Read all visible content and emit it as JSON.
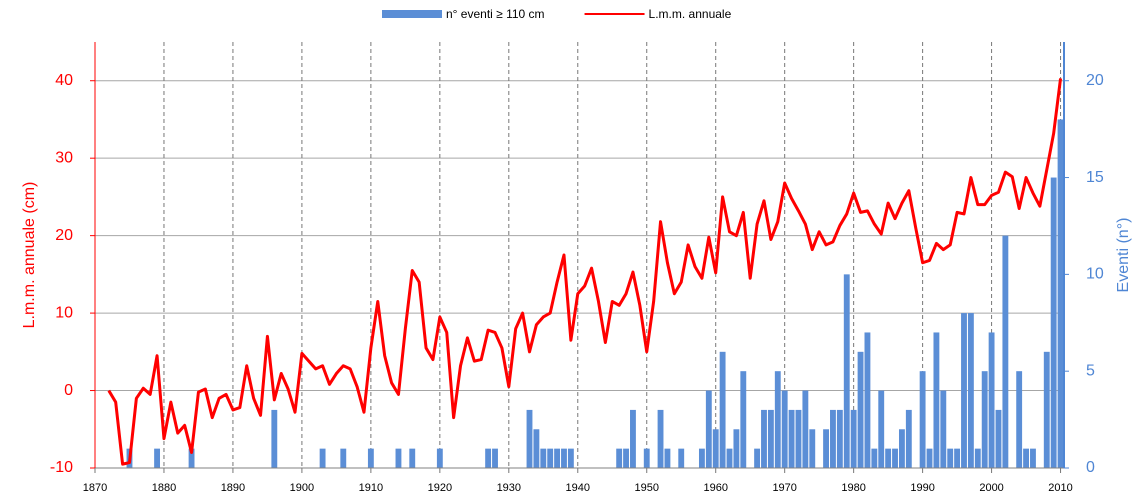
{
  "chart_data": {
    "type": "bar-line",
    "ylabel": "L.m.m. annuale (cm)",
    "y2label": "Eventi (n°)",
    "xlim": [
      1870,
      2010.5
    ],
    "xticks": [
      1870,
      1880,
      1890,
      1900,
      1910,
      1920,
      1930,
      1940,
      1950,
      1960,
      1970,
      1980,
      1990,
      2000,
      2010
    ],
    "ylim": [
      -10,
      45
    ],
    "yticks": [
      -10,
      0,
      10,
      20,
      30,
      40
    ],
    "y2lim": [
      0,
      22
    ],
    "y2ticks": [
      0,
      5,
      10,
      15,
      20
    ],
    "grid": true,
    "x": [
      1872,
      1873,
      1874,
      1875,
      1876,
      1877,
      1878,
      1879,
      1880,
      1881,
      1882,
      1883,
      1884,
      1885,
      1886,
      1887,
      1888,
      1889,
      1890,
      1891,
      1892,
      1893,
      1894,
      1895,
      1896,
      1897,
      1898,
      1899,
      1900,
      1901,
      1902,
      1903,
      1904,
      1905,
      1906,
      1907,
      1908,
      1909,
      1910,
      1911,
      1912,
      1913,
      1914,
      1915,
      1916,
      1917,
      1918,
      1919,
      1920,
      1921,
      1922,
      1923,
      1924,
      1925,
      1926,
      1927,
      1928,
      1929,
      1930,
      1931,
      1932,
      1933,
      1934,
      1935,
      1936,
      1937,
      1938,
      1939,
      1940,
      1941,
      1942,
      1943,
      1944,
      1945,
      1946,
      1947,
      1948,
      1949,
      1950,
      1951,
      1952,
      1953,
      1954,
      1955,
      1956,
      1957,
      1958,
      1959,
      1960,
      1961,
      1962,
      1963,
      1964,
      1965,
      1966,
      1967,
      1968,
      1969,
      1970,
      1971,
      1972,
      1973,
      1974,
      1975,
      1976,
      1977,
      1978,
      1979,
      1980,
      1981,
      1982,
      1983,
      1984,
      1985,
      1986,
      1987,
      1988,
      1989,
      1990,
      1991,
      1992,
      1993,
      1994,
      1995,
      1996,
      1997,
      1998,
      1999,
      2000,
      2001,
      2002,
      2003,
      2004,
      2005,
      2006,
      2007,
      2008,
      2009,
      2010
    ],
    "series": [
      {
        "name": "n° eventi ≥ 110 cm",
        "type": "bar",
        "axis": "y2",
        "color": "#5b8ed6",
        "values": [
          0,
          0,
          0,
          1,
          0,
          0,
          0,
          1,
          0,
          0,
          0,
          0,
          1,
          0,
          0,
          0,
          0,
          0,
          0,
          0,
          0,
          0,
          0,
          0,
          3,
          0,
          0,
          0,
          0,
          0,
          0,
          1,
          0,
          0,
          1,
          0,
          0,
          0,
          1,
          0,
          0,
          0,
          1,
          0,
          1,
          0,
          0,
          0,
          1,
          0,
          0,
          0,
          0,
          0,
          0,
          1,
          1,
          0,
          0,
          0,
          0,
          3,
          2,
          1,
          1,
          1,
          1,
          1,
          0,
          0,
          0,
          0,
          0,
          0,
          1,
          1,
          3,
          0,
          1,
          0,
          3,
          1,
          0,
          1,
          0,
          0,
          1,
          4,
          2,
          6,
          1,
          2,
          5,
          0,
          1,
          3,
          3,
          5,
          4,
          3,
          3,
          4,
          2,
          0,
          2,
          3,
          3,
          10,
          3,
          6,
          7,
          1,
          4,
          1,
          1,
          2,
          3,
          0,
          5,
          1,
          7,
          4,
          1,
          1,
          8,
          8,
          1,
          5,
          7,
          3,
          12,
          0,
          5,
          1,
          1,
          0,
          6,
          15,
          18
        ]
      },
      {
        "name": "L.m.m. annuale",
        "type": "line",
        "color": "#ff0000",
        "values": [
          0,
          -1.5,
          -9.5,
          -9.3,
          -1,
          0.3,
          -0.5,
          4.5,
          -6.2,
          -1.5,
          -5.5,
          -4.5,
          -8,
          -0.2,
          0.2,
          -3.5,
          -1,
          -0.5,
          -2.5,
          -2.2,
          3.2,
          -1,
          -3.2,
          7,
          -1.2,
          2.2,
          0.2,
          -2.8,
          4.8,
          3.8,
          2.8,
          3.2,
          0.8,
          2.2,
          3.2,
          2.8,
          0.5,
          -2.8,
          5.5,
          11.5,
          4.5,
          1,
          -0.5,
          8,
          15.5,
          14,
          5.5,
          4,
          9.5,
          7.5,
          -3.5,
          3.2,
          6.8,
          3.8,
          4,
          7.8,
          7.5,
          5.5,
          0.5,
          8,
          10,
          5,
          8.5,
          9.5,
          10,
          14,
          17.5,
          6.5,
          12.5,
          13.5,
          15.8,
          11.5,
          6.2,
          11.5,
          11,
          12.5,
          15.3,
          11,
          5,
          11.5,
          21.8,
          16.5,
          12.5,
          14,
          18.8,
          16,
          14.5,
          19.8,
          15.2,
          25,
          20.5,
          20,
          23,
          14.5,
          21.5,
          24.5,
          19.5,
          21.8,
          26.8,
          24.8,
          23.2,
          21.5,
          18.2,
          20.5,
          18.8,
          19.2,
          21.3,
          22.8,
          25.5,
          23,
          23.2,
          21.5,
          20.2,
          24.2,
          22.2,
          24.2,
          25.8,
          21,
          16.5,
          16.8,
          19,
          18.2,
          18.8,
          23,
          22.8,
          27.5,
          24,
          24,
          25.2,
          25.6,
          28.2,
          27.6,
          23.5,
          27.5,
          25.5,
          23.8,
          28.5,
          33.2,
          40.3
        ]
      }
    ]
  }
}
